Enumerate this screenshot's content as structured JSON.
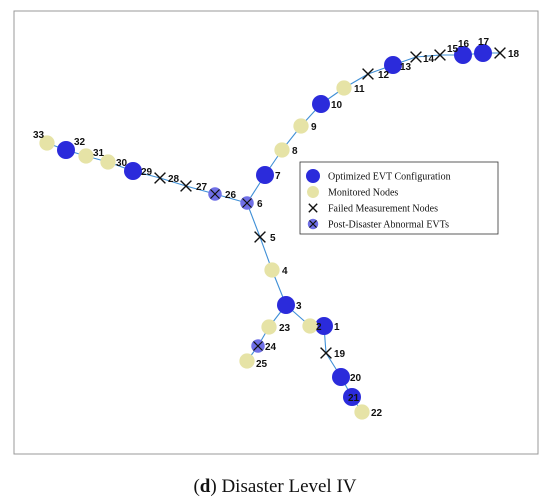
{
  "colors": {
    "evt": "#2b2bdb",
    "monitored": "#e6e3a6",
    "edge": "#3f8fd6",
    "abnormal": "#6f6fe6",
    "frame": "#999999"
  },
  "legend": [
    {
      "marker": "evt",
      "label": "Optimized EVT Configuration"
    },
    {
      "marker": "monitored",
      "label": "Monitored Nodes"
    },
    {
      "marker": "failed",
      "label": "Failed Measurement Nodes"
    },
    {
      "marker": "abnormal",
      "label": "Post-Disaster Abnormal EVTs"
    }
  ],
  "caption": {
    "letter": "d",
    "text": "Disaster Level IV"
  },
  "nodes": [
    {
      "id": "1",
      "type": "evt"
    },
    {
      "id": "2",
      "type": "monitored"
    },
    {
      "id": "3",
      "type": "evt"
    },
    {
      "id": "4",
      "type": "monitored"
    },
    {
      "id": "5",
      "type": "failed"
    },
    {
      "id": "6",
      "type": "abnormal"
    },
    {
      "id": "7",
      "type": "evt"
    },
    {
      "id": "8",
      "type": "monitored"
    },
    {
      "id": "9",
      "type": "monitored"
    },
    {
      "id": "10",
      "type": "evt"
    },
    {
      "id": "11",
      "type": "monitored"
    },
    {
      "id": "12",
      "type": "failed"
    },
    {
      "id": "13",
      "type": "evt"
    },
    {
      "id": "14",
      "type": "failed"
    },
    {
      "id": "15",
      "type": "failed"
    },
    {
      "id": "16",
      "type": "evt"
    },
    {
      "id": "17",
      "type": "evt"
    },
    {
      "id": "18",
      "type": "failed"
    },
    {
      "id": "19",
      "type": "failed"
    },
    {
      "id": "20",
      "type": "evt"
    },
    {
      "id": "21",
      "type": "evt"
    },
    {
      "id": "22",
      "type": "monitored"
    },
    {
      "id": "23",
      "type": "monitored"
    },
    {
      "id": "24",
      "type": "abnormal"
    },
    {
      "id": "25",
      "type": "monitored"
    },
    {
      "id": "26",
      "type": "abnormal"
    },
    {
      "id": "27",
      "type": "failed"
    },
    {
      "id": "28",
      "type": "failed"
    },
    {
      "id": "29",
      "type": "evt"
    },
    {
      "id": "30",
      "type": "monitored"
    },
    {
      "id": "31",
      "type": "monitored"
    },
    {
      "id": "32",
      "type": "evt"
    },
    {
      "id": "33",
      "type": "monitored"
    }
  ],
  "edges": [
    [
      "1",
      "2"
    ],
    [
      "2",
      "3"
    ],
    [
      "3",
      "4"
    ],
    [
      "4",
      "5"
    ],
    [
      "5",
      "6"
    ],
    [
      "6",
      "7"
    ],
    [
      "7",
      "8"
    ],
    [
      "8",
      "9"
    ],
    [
      "9",
      "10"
    ],
    [
      "10",
      "11"
    ],
    [
      "11",
      "12"
    ],
    [
      "12",
      "13"
    ],
    [
      "13",
      "14"
    ],
    [
      "14",
      "15"
    ],
    [
      "15",
      "16"
    ],
    [
      "16",
      "17"
    ],
    [
      "17",
      "18"
    ],
    [
      "1",
      "19"
    ],
    [
      "19",
      "20"
    ],
    [
      "20",
      "21"
    ],
    [
      "21",
      "22"
    ],
    [
      "3",
      "23"
    ],
    [
      "23",
      "24"
    ],
    [
      "24",
      "25"
    ],
    [
      "6",
      "26"
    ],
    [
      "26",
      "27"
    ],
    [
      "27",
      "28"
    ],
    [
      "28",
      "29"
    ],
    [
      "29",
      "30"
    ],
    [
      "30",
      "31"
    ],
    [
      "31",
      "32"
    ],
    [
      "32",
      "33"
    ]
  ]
}
